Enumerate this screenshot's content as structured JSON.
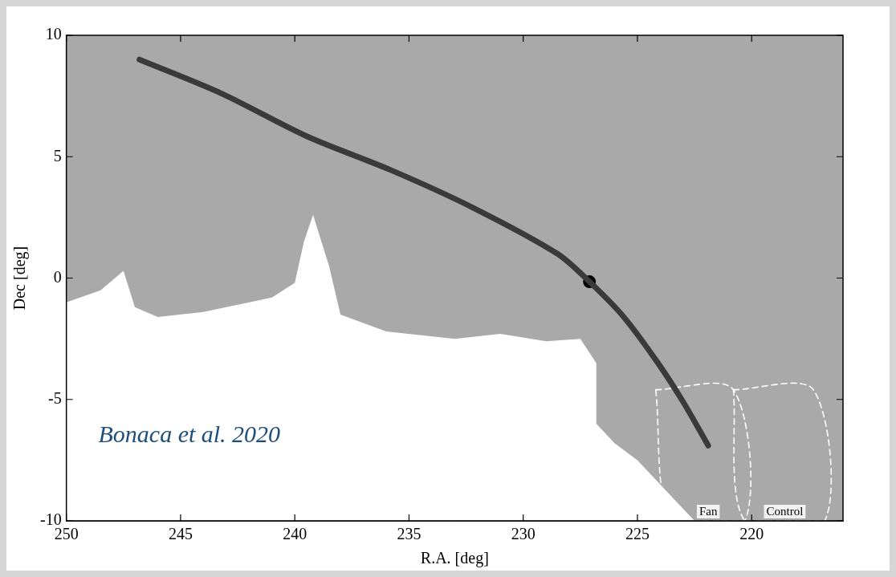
{
  "chart_data": {
    "type": "scatter",
    "x_label": "R.A. [deg]",
    "y_label": "Dec [deg]",
    "xlim": [
      250,
      216
    ],
    "ylim": [
      -10,
      10
    ],
    "xticks": [
      250,
      245,
      240,
      235,
      230,
      225,
      220
    ],
    "yticks": [
      -10,
      -5,
      0,
      5,
      10
    ],
    "grid": false,
    "series": [
      {
        "type": "area",
        "color": "#a9a9a9",
        "x": [
          250,
          250,
          248.5,
          247.5,
          247,
          246,
          244,
          243,
          241,
          240,
          239.6,
          239.2,
          238.5,
          238,
          236,
          233,
          231,
          229,
          227.5,
          226.8,
          226.8,
          226,
          225,
          224,
          223,
          222.5,
          216,
          216,
          250
        ],
        "values": [
          10,
          -1,
          -0.5,
          0.3,
          -1.2,
          -1.6,
          -1.4,
          -1.2,
          -0.8,
          -0.2,
          1.5,
          2.6,
          0.5,
          -1.5,
          -2.2,
          -2.5,
          -2.3,
          -2.6,
          -2.5,
          -3.5,
          -6,
          -6.8,
          -7.5,
          -8.5,
          -9.5,
          -10,
          -10,
          10,
          10
        ]
      },
      {
        "type": "line",
        "color": "#3a3a3a",
        "x": [
          246.8,
          243.2,
          239.5,
          235.8,
          232.2,
          228.5,
          227.1,
          225.6,
          224.1,
          223.0,
          221.9
        ],
        "values": [
          9.0,
          7.6,
          5.85,
          4.45,
          2.9,
          1.0,
          -0.15,
          -1.6,
          -3.5,
          -5.1,
          -6.9
        ]
      },
      {
        "type": "scatter",
        "marker": "circle",
        "color": "#000000",
        "x": [
          227.1
        ],
        "values": [
          -0.15
        ]
      },
      {
        "name": "Fan",
        "type": "line",
        "line_style": "dashed",
        "color": "#ffffff",
        "x": [
          224.2,
          220.8,
          220.3,
          223.5,
          224.2
        ],
        "values": [
          -4.6,
          -4.6,
          -10,
          -10,
          -4.6
        ]
      },
      {
        "name": "Control",
        "type": "line",
        "line_style": "dashed",
        "color": "#ffffff",
        "x": [
          220.8,
          217.3,
          216.8,
          220.3,
          220.8
        ],
        "values": [
          -4.6,
          -4.6,
          -10,
          -10,
          -4.6
        ]
      }
    ],
    "annotations": [
      {
        "text": "Bonaca et al. 2020",
        "x": 248.6,
        "y": -6.5
      }
    ]
  }
}
